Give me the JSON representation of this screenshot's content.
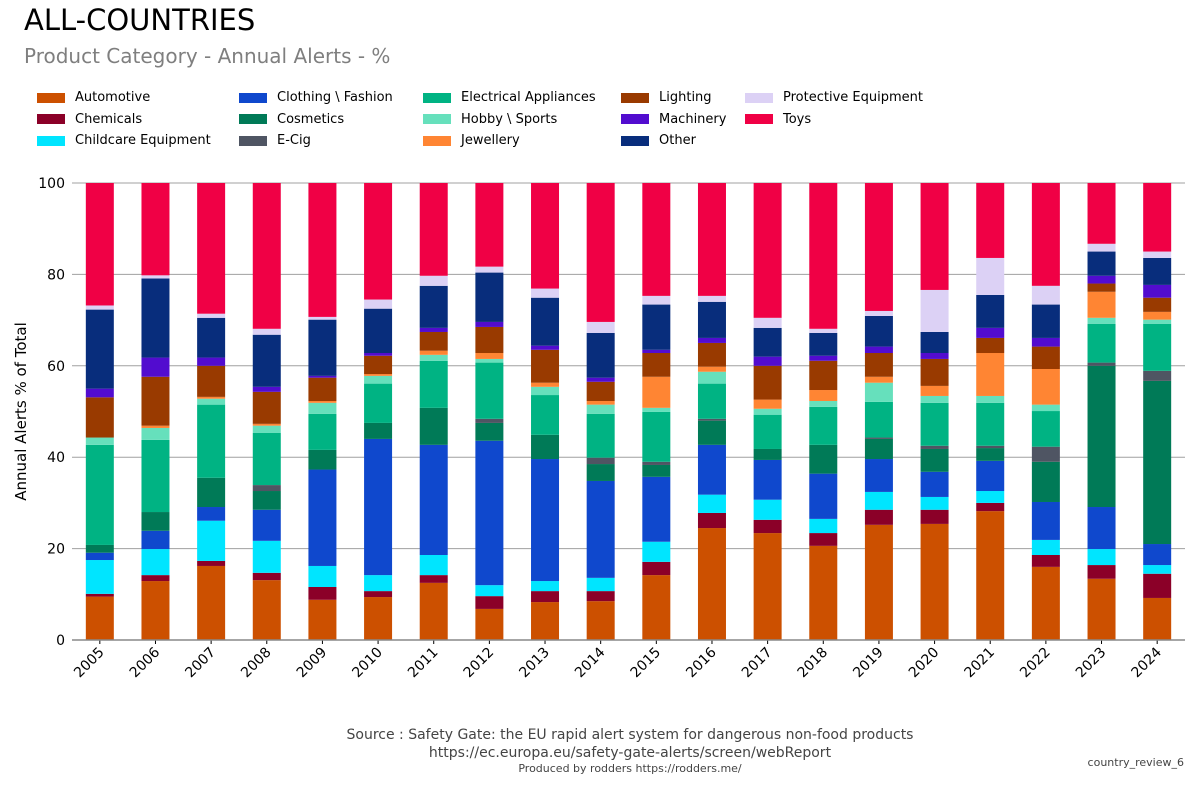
{
  "title": "ALL-COUNTRIES",
  "subtitle": "Product Category - Annual Alerts - %",
  "footer": {
    "source": "Source : Safety Gate: the EU rapid alert system for dangerous non-food products",
    "url": "https://ec.europa.eu/safety-gate-alerts/screen/webReport",
    "produced": "Produced by rodders https://rodders.me/",
    "tag": "country_review_6"
  },
  "chart_data": {
    "type": "bar",
    "stacked": true,
    "title": "Product Category - Annual Alerts - %",
    "xlabel": "",
    "ylabel": "Annual Alerts % of Total",
    "ylim": [
      0,
      100
    ],
    "yticks": [
      0,
      20,
      40,
      60,
      80,
      100
    ],
    "grid": true,
    "legend_position": "top",
    "categories": [
      "2005",
      "2006",
      "2007",
      "2008",
      "2009",
      "2010",
      "2011",
      "2012",
      "2013",
      "2014",
      "2015",
      "2016",
      "2017",
      "2018",
      "2019",
      "2020",
      "2021",
      "2022",
      "2023",
      "2024"
    ],
    "series": [
      {
        "name": "Automotive",
        "color": "#cc5000",
        "values": [
          9.5,
          12.9,
          16.2,
          13.1,
          8.8,
          9.4,
          12.5,
          6.8,
          8.3,
          8.5,
          14.2,
          24.5,
          23.4,
          20.6,
          25.2,
          25.4,
          28.2,
          16.0,
          13.4,
          9.2
        ]
      },
      {
        "name": "Chemicals",
        "color": "#8b0028",
        "values": [
          0.6,
          1.3,
          1.1,
          1.6,
          2.8,
          1.3,
          1.7,
          2.8,
          2.4,
          2.2,
          2.9,
          3.3,
          2.9,
          2.8,
          3.3,
          3.1,
          1.8,
          2.6,
          3.0,
          5.3
        ]
      },
      {
        "name": "Childcare Equipment",
        "color": "#00e5ff",
        "values": [
          7.4,
          5.7,
          8.8,
          7.0,
          4.6,
          3.5,
          4.4,
          2.4,
          2.2,
          2.9,
          4.4,
          4.0,
          4.4,
          3.1,
          3.9,
          2.8,
          2.6,
          3.3,
          3.5,
          1.9
        ]
      },
      {
        "name": "Clothing \\ Fashion",
        "color": "#0f48cd",
        "values": [
          1.6,
          4.0,
          3.0,
          6.8,
          21.1,
          29.8,
          24.1,
          31.6,
          26.7,
          21.2,
          14.2,
          10.9,
          8.7,
          9.9,
          7.2,
          5.5,
          6.6,
          8.3,
          9.2,
          4.6
        ]
      },
      {
        "name": "Cosmetics",
        "color": "#007a57",
        "values": [
          1.7,
          4.1,
          6.4,
          4.1,
          4.3,
          3.5,
          8.1,
          3.9,
          5.3,
          3.7,
          2.6,
          5.3,
          2.4,
          6.3,
          4.4,
          5.0,
          2.8,
          8.8,
          30.9,
          35.7
        ]
      },
      {
        "name": "E-Cig",
        "color": "#4f5563",
        "values": [
          0,
          0,
          0,
          1.3,
          0,
          0,
          0,
          0.9,
          0,
          1.4,
          0.7,
          0.4,
          0,
          0,
          0.3,
          0.7,
          0.5,
          3.3,
          0.7,
          2.2
        ]
      },
      {
        "name": "Electrical Appliances",
        "color": "#00b383",
        "values": [
          21.9,
          15.8,
          16.0,
          11.4,
          7.9,
          8.6,
          10.3,
          12.3,
          8.7,
          9.6,
          10.9,
          7.7,
          7.5,
          8.3,
          7.8,
          9.4,
          9.4,
          7.8,
          8.5,
          10.3
        ]
      },
      {
        "name": "Hobby \\ Sports",
        "color": "#66e0bc",
        "values": [
          1.6,
          2.6,
          1.3,
          1.6,
          2.4,
          1.7,
          1.3,
          0.8,
          1.8,
          2.0,
          0.9,
          2.6,
          1.3,
          1.3,
          4.2,
          1.5,
          1.5,
          1.4,
          1.3,
          0.9
        ]
      },
      {
        "name": "Jewellery",
        "color": "#ff8533",
        "values": [
          0,
          0.5,
          0.4,
          0.4,
          0.4,
          0.4,
          0.9,
          1.3,
          0.9,
          0.8,
          6.8,
          1.1,
          2.0,
          2.4,
          1.3,
          2.2,
          9.4,
          7.8,
          5.7,
          1.7
        ]
      },
      {
        "name": "Lighting",
        "color": "#993a00",
        "values": [
          8.8,
          10.7,
          6.8,
          7.0,
          5.1,
          4.0,
          4.1,
          5.7,
          7.2,
          4.2,
          5.2,
          5.2,
          7.4,
          6.4,
          5.2,
          5.9,
          3.3,
          4.9,
          1.8,
          3.1
        ]
      },
      {
        "name": "Machinery",
        "color": "#520ccf",
        "values": [
          1.9,
          4.2,
          1.8,
          1.1,
          0.4,
          0.6,
          0.9,
          1.1,
          0.9,
          0.9,
          0.7,
          1.1,
          2.0,
          1.1,
          1.4,
          1.3,
          2.2,
          1.9,
          1.7,
          2.8
        ]
      },
      {
        "name": "Other",
        "color": "#082d7c",
        "values": [
          17.3,
          17.3,
          8.7,
          11.4,
          12.3,
          9.7,
          9.2,
          10.8,
          10.5,
          9.8,
          9.9,
          7.9,
          6.3,
          5.0,
          6.7,
          4.6,
          7.2,
          7.3,
          5.3,
          5.9
        ]
      },
      {
        "name": "Protective Equipment",
        "color": "#dcd1f5",
        "values": [
          0.9,
          0.7,
          0.9,
          1.3,
          0.6,
          2.0,
          2.2,
          1.3,
          2.0,
          2.4,
          1.9,
          1.3,
          2.2,
          0.9,
          1.1,
          9.2,
          8.1,
          4.1,
          1.7,
          1.4
        ]
      },
      {
        "name": "Toys",
        "color": "#f00045",
        "values": [
          26.8,
          20.2,
          28.6,
          31.9,
          29.3,
          25.5,
          20.3,
          18.3,
          23.1,
          30.4,
          24.7,
          24.7,
          29.5,
          31.9,
          28.0,
          23.4,
          16.4,
          22.5,
          13.3,
          15.0
        ]
      }
    ]
  }
}
